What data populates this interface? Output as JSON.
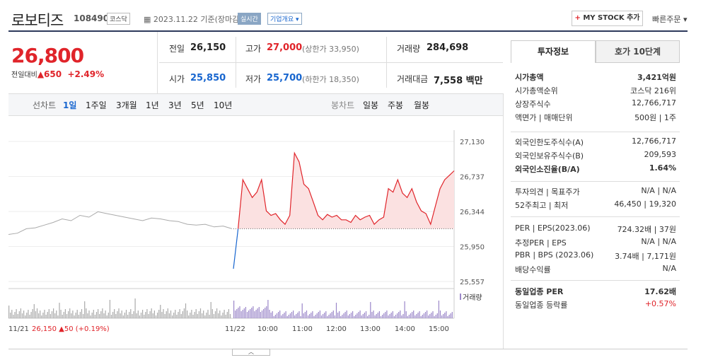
{
  "header": {
    "name": "로보티즈",
    "code": "108490",
    "market": "코스닥",
    "date": "2023.11.22",
    "basis": "기준(장마감)",
    "realtime": "실시간",
    "company_info": "기업개요",
    "mystock": "MY STOCK 추가",
    "quick_order": "빠른주문"
  },
  "quote": {
    "price": "26,800",
    "vs_label": "전일대비",
    "change": "650",
    "change_pct": "+2.49%",
    "prev_label": "전일",
    "prev": "26,150",
    "high_label": "고가",
    "high": "27,000",
    "upper_limit": "(상한가 33,950)",
    "volume_label": "거래량",
    "volume": "284,698",
    "open_label": "시가",
    "open": "25,850",
    "low_label": "저가",
    "low": "25,700",
    "lower_limit": "(하한가 18,350)",
    "amount_label": "거래대금",
    "amount": "7,558",
    "amount_unit": "백만"
  },
  "tabs": {
    "line_label": "선차트",
    "periods": [
      "1일",
      "1주일",
      "3개월",
      "1년",
      "3년",
      "5년",
      "10년"
    ],
    "candle_label": "봉차트",
    "candles": [
      "일봉",
      "주봉",
      "월봉"
    ]
  },
  "chart": {
    "y_ticks": [
      "27,130",
      "26,737",
      "26,344",
      "25,950",
      "25,557"
    ],
    "x_ticks": [
      "11/22",
      "10:00",
      "11:00",
      "12:00",
      "13:00",
      "14:00",
      "15:00"
    ],
    "volume_label": "거래량",
    "footer_date": "11/21",
    "footer_price": "26,150",
    "footer_change": "▲50",
    "footer_pct": "(+0.19%)"
  },
  "chart_data": {
    "type": "line",
    "y_range": [
      25557,
      27130
    ],
    "prev_close": 26150,
    "prev_day": [
      26085,
      26100,
      26150,
      26160,
      26190,
      26220,
      26260,
      26240,
      26300,
      26280,
      26340,
      26320,
      26300,
      26280,
      26260,
      26240,
      26270,
      26260,
      26240,
      26230,
      26200,
      26190,
      26200,
      26170,
      26180,
      26150
    ],
    "today": [
      25700,
      26150,
      26700,
      26600,
      26500,
      26560,
      26700,
      26350,
      26300,
      26320,
      26250,
      26200,
      26300,
      27000,
      26900,
      26650,
      26600,
      26450,
      26300,
      26250,
      26310,
      26280,
      26300,
      26250,
      26250,
      26220,
      26300,
      26250,
      26280,
      26300,
      26200,
      26250,
      26280,
      26600,
      26560,
      26700,
      26550,
      26500,
      26600,
      26450,
      26350,
      26320,
      26200,
      26400,
      26600,
      26700,
      26750,
      26800
    ]
  },
  "right": {
    "tab1": "투자정보",
    "tab2": "호가 10단계",
    "rows1": [
      {
        "k": "시가총액",
        "v": "3,421억원"
      },
      {
        "k": "시가총액순위",
        "v": "코스닥 216위"
      },
      {
        "k": "상장주식수",
        "v": "12,766,717"
      },
      {
        "k": "액면가 | 매매단위",
        "v": "500원 | 1주"
      }
    ],
    "rows2": [
      {
        "k": "외국인한도주식수(A)",
        "v": "12,766,717"
      },
      {
        "k": "외국인보유주식수(B)",
        "v": "209,593"
      },
      {
        "k": "외국인소진율(B/A)",
        "v": "1.64%"
      }
    ],
    "rows3": [
      {
        "k": "투자의견 | 목표주가",
        "v": "N/A | N/A"
      },
      {
        "k": "52주최고 | 최저",
        "v": "46,450 | 19,320"
      }
    ],
    "rows4": [
      {
        "k": "PER | EPS(2023.06)",
        "v": "724.32배 | 37원"
      },
      {
        "k": "추정PER | EPS",
        "v": "N/A | N/A"
      },
      {
        "k": "PBR | BPS (2023.06)",
        "v": "3.74배 | 7,171원"
      },
      {
        "k": "배당수익률",
        "v": "N/A"
      }
    ],
    "rows5": [
      {
        "k": "동일업종 PER",
        "v": "17.62배"
      },
      {
        "k": "동일업종 등락률",
        "v": "+0.57%"
      }
    ]
  }
}
